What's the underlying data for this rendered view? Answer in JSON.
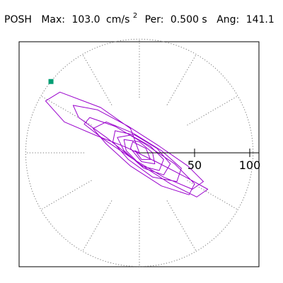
{
  "chart_data": {
    "type": "scatter",
    "title": {
      "station": "POSH",
      "max_label": "Max:",
      "max_value": "103.0",
      "max_unit_base": "cm/s",
      "max_unit_exp": "2",
      "period_label": "Per:",
      "period_value": "0.500 s",
      "angle_label": "Ang:",
      "angle_value": "141.1"
    },
    "xlabel": "",
    "ylabel": "",
    "radial_ticks": [
      {
        "value": 50,
        "label": "50"
      },
      {
        "value": 100,
        "label": "100"
      }
    ],
    "radial_max": 103.0,
    "guide_angles_deg": [
      0,
      30,
      60,
      90,
      120,
      150,
      180,
      210,
      240,
      270,
      300,
      330
    ],
    "grid": true,
    "colors": {
      "trace": "#9900cc",
      "peak_marker": "#009e73",
      "frame": "#000000",
      "guides": "#777777"
    },
    "peak_point": {
      "x": -80.1,
      "y": 64.6,
      "magnitude": 103.0
    },
    "series": [
      {
        "values": [
          [
            0,
            0
          ],
          [
            -8,
            22
          ],
          [
            -35,
            41
          ],
          [
            -72,
            55
          ],
          [
            -85,
            47
          ],
          [
            -68,
            28
          ],
          [
            -40,
            16
          ],
          [
            -12,
            5
          ],
          [
            15,
            -8
          ],
          [
            42,
            -22
          ],
          [
            62,
            -33
          ],
          [
            52,
            -40
          ],
          [
            28,
            -28
          ],
          [
            0,
            -10
          ],
          [
            -30,
            14
          ],
          [
            -55,
            32
          ],
          [
            -60,
            43
          ],
          [
            -38,
            39
          ],
          [
            -10,
            24
          ],
          [
            18,
            6
          ],
          [
            44,
            -12
          ],
          [
            58,
            -26
          ],
          [
            48,
            -33
          ],
          [
            22,
            -22
          ],
          [
            -5,
            -6
          ],
          [
            -32,
            12
          ],
          [
            -50,
            26
          ],
          [
            -45,
            32
          ],
          [
            -22,
            24
          ],
          [
            5,
            8
          ],
          [
            32,
            -10
          ],
          [
            50,
            -28
          ],
          [
            45,
            -38
          ],
          [
            20,
            -30
          ],
          [
            -8,
            -12
          ],
          [
            -30,
            8
          ],
          [
            -42,
            22
          ],
          [
            -30,
            28
          ],
          [
            -6,
            18
          ],
          [
            20,
            2
          ],
          [
            38,
            -14
          ],
          [
            34,
            -26
          ],
          [
            12,
            -22
          ],
          [
            -10,
            -6
          ],
          [
            -24,
            10
          ],
          [
            -22,
            20
          ],
          [
            -4,
            16
          ],
          [
            16,
            4
          ],
          [
            28,
            -10
          ],
          [
            22,
            -20
          ],
          [
            4,
            -14
          ],
          [
            -14,
            2
          ],
          [
            -20,
            14
          ],
          [
            -8,
            16
          ],
          [
            10,
            6
          ],
          [
            22,
            -6
          ],
          [
            18,
            -16
          ],
          [
            2,
            -12
          ],
          [
            -12,
            2
          ],
          [
            -14,
            12
          ],
          [
            0,
            10
          ],
          [
            12,
            0
          ],
          [
            14,
            -10
          ],
          [
            2,
            -8
          ],
          [
            -8,
            4
          ],
          [
            -6,
            10
          ],
          [
            6,
            4
          ],
          [
            10,
            -6
          ],
          [
            2,
            -6
          ],
          [
            -4,
            2
          ],
          [
            0,
            0
          ]
        ]
      }
    ]
  }
}
